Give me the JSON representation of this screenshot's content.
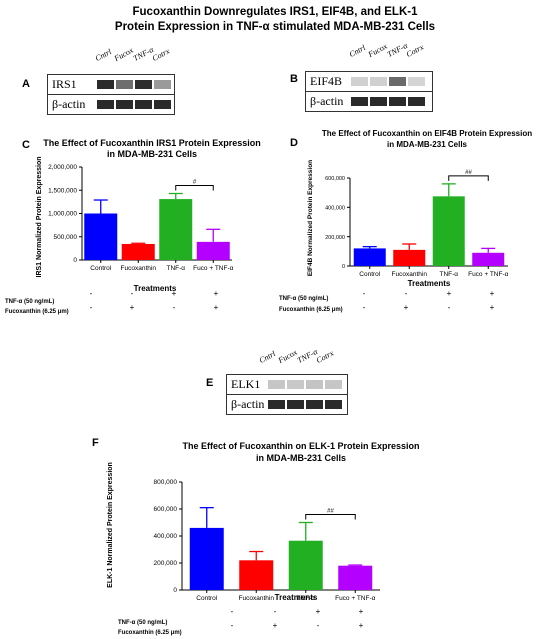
{
  "figure": {
    "title_line1": "Fucoxanthin Downregulates IRS1, EIF4B, and ELK-1",
    "title_line2": "Protein Expression in TNF-α stimulated MDA-MB-231 Cells"
  },
  "blots": [
    {
      "panel": "A",
      "protein": "IRS1",
      "loading": "β-actin",
      "lanes": [
        "Cntrl",
        "Fucox",
        "TNF-α",
        "Cotrx"
      ],
      "protein_band_colors": [
        "#2b2b2b",
        "#6e6e6e",
        "#2e2e2e",
        "#9a9a9a"
      ],
      "actin_band_colors": [
        "#2a2a2a",
        "#2a2a2a",
        "#2a2a2a",
        "#2a2a2a"
      ]
    },
    {
      "panel": "B",
      "protein": "EIF4B",
      "loading": "β-actin",
      "lanes": [
        "Cntrl",
        "Fucox",
        "TNF-α",
        "Cotrx"
      ],
      "protein_band_colors": [
        "#d0d0d0",
        "#d0d0d0",
        "#6a6a6a",
        "#d4d4d4"
      ],
      "actin_band_colors": [
        "#2a2a2a",
        "#2a2a2a",
        "#2a2a2a",
        "#2a2a2a"
      ]
    },
    {
      "panel": "E",
      "protein": "ELK1",
      "loading": "β-actin",
      "lanes": [
        "Cntrl",
        "Fucox",
        "TNF-α",
        "Cotrx"
      ],
      "protein_band_colors": [
        "#c6c6c6",
        "#c8c8c8",
        "#c4c4c4",
        "#c6c6c6"
      ],
      "actin_band_colors": [
        "#2a2a2a",
        "#2a2a2a",
        "#2a2a2a",
        "#2a2a2a"
      ]
    }
  ],
  "treatment_labels": {
    "tnf": "TNF-α (50 ng/mL)",
    "fuco_c": "Fucoxanthin (6.25 μm)",
    "fuco_d": "Fucoxanthin (6.25 μm)",
    "fuco_f": "Fucoxanthin (6.25 μm)",
    "tnf_signs": [
      "-",
      "-",
      "+",
      "+"
    ],
    "fuco_signs": [
      "-",
      "+",
      "-",
      "+"
    ]
  },
  "chart_data": [
    {
      "panel": "C",
      "type": "bar",
      "title": "The Effect of Fucoxanthin IRS1 Protein Expression in MDA-MB-231 Cells",
      "title_line1": "The Effect of Fucoxanthin IRS1 Protein Expression",
      "title_line2": "in MDA-MB-231 Cells",
      "xlabel": "Treatments",
      "ylabel": "IRS1 Normalized Protein Expression",
      "categories": [
        "Control",
        "Fucoxanthin",
        "TNF-α",
        "Fuco + TNF-α"
      ],
      "values": [
        1000000,
        345000,
        1310000,
        390000
      ],
      "errors": [
        290000,
        15000,
        120000,
        270000
      ],
      "colors": [
        "#0000ff",
        "#ff0000",
        "#22b022",
        "#b400ff"
      ],
      "ylim": [
        0,
        2000000
      ],
      "yticks": [
        "0",
        "500,000",
        "1,000,000",
        "1,500,000",
        "2,000,000"
      ],
      "significance": {
        "from": 2,
        "to": 3,
        "label": "#"
      }
    },
    {
      "panel": "D",
      "type": "bar",
      "title": "The Effect of Fucoxanthin on EIF4B Protein Expression in MDA-MB-231 Cells",
      "title_line1": "The Effect of Fucoxanthin on EIF4B Protein Expression",
      "title_line2": "in MDA-MB-231 Cells",
      "xlabel": "Treatments",
      "ylabel": "EIF4B Normalized Protein Expression",
      "categories": [
        "Control",
        "Fucoxanthin",
        "TNF-α",
        "Fuco + TNF-α"
      ],
      "values": [
        120000,
        110000,
        475000,
        90000
      ],
      "errors": [
        12000,
        40000,
        85000,
        30000
      ],
      "colors": [
        "#0000ff",
        "#ff0000",
        "#22b022",
        "#b400ff"
      ],
      "ylim": [
        0,
        600000
      ],
      "yticks": [
        "0",
        "200,000",
        "400,000",
        "600,000"
      ],
      "significance": {
        "from": 2,
        "to": 3,
        "label": "##"
      }
    },
    {
      "panel": "F",
      "type": "bar",
      "title": "The Effect of Fucoxanthin on ELK-1 Protein Expression in MDA-MB-231 Cells",
      "title_line1": "The Effect of Fucoxanthin on ELK-1 Protein Expression",
      "title_line2": "in MDA-MB-231 Cells",
      "xlabel": "Treatments",
      "ylabel": "ELK-1 Normalized Protein Expression",
      "categories": [
        "Control",
        "Fucoxanthin",
        "TNF-α",
        "Fuco + TNF-α"
      ],
      "values": [
        460000,
        220000,
        365000,
        180000
      ],
      "errors": [
        150000,
        65000,
        135000,
        5000
      ],
      "colors": [
        "#0000ff",
        "#ff0000",
        "#22b022",
        "#b400ff"
      ],
      "ylim": [
        0,
        800000
      ],
      "yticks": [
        "0",
        "200,000",
        "400,000",
        "600,000",
        "800,000"
      ],
      "significance": {
        "from": 2,
        "to": 3,
        "label": "##"
      }
    }
  ]
}
